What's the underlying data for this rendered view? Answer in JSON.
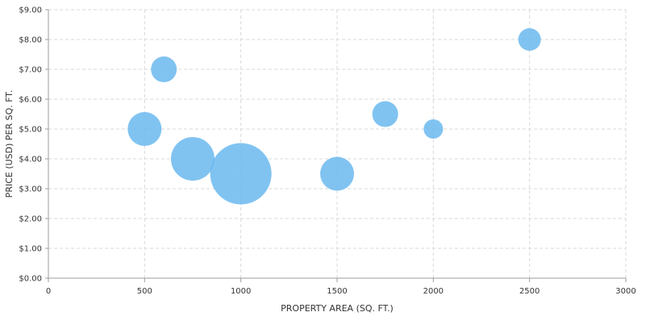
{
  "chart_data": {
    "type": "scatter",
    "variant": "bubble",
    "title": "",
    "xlabel": "PROPERTY AREA (SQ. FT.)",
    "ylabel": "PRICE (USD) PER SQ. FT.",
    "xlim": [
      0,
      3000
    ],
    "ylim": [
      0,
      9
    ],
    "x_ticks": [
      0,
      500,
      1000,
      1500,
      2000,
      2500,
      3000
    ],
    "x_tick_labels": [
      "0",
      "500",
      "1000",
      "1500",
      "2000",
      "2500",
      "3000"
    ],
    "y_ticks": [
      0,
      1,
      2,
      3,
      4,
      5,
      6,
      7,
      8,
      9
    ],
    "y_tick_labels": [
      "$0.00",
      "$1.00",
      "$2.00",
      "$3.00",
      "$4.00",
      "$5.00",
      "$6.00",
      "$7.00",
      "$8.00",
      "$9.00"
    ],
    "grid": true,
    "legend": "none",
    "bubble_color": "#6ab8ee",
    "bubble_opacity": 0.85,
    "size_unit": "relative",
    "series": [
      {
        "points": [
          {
            "x": 500,
            "y": 5.0,
            "size": 21
          },
          {
            "x": 600,
            "y": 7.0,
            "size": 16
          },
          {
            "x": 750,
            "y": 4.0,
            "size": 27
          },
          {
            "x": 1000,
            "y": 3.5,
            "size": 38
          },
          {
            "x": 1500,
            "y": 3.5,
            "size": 21
          },
          {
            "x": 1750,
            "y": 5.5,
            "size": 16
          },
          {
            "x": 2000,
            "y": 5.0,
            "size": 12
          },
          {
            "x": 2500,
            "y": 8.0,
            "size": 14
          }
        ]
      }
    ]
  }
}
